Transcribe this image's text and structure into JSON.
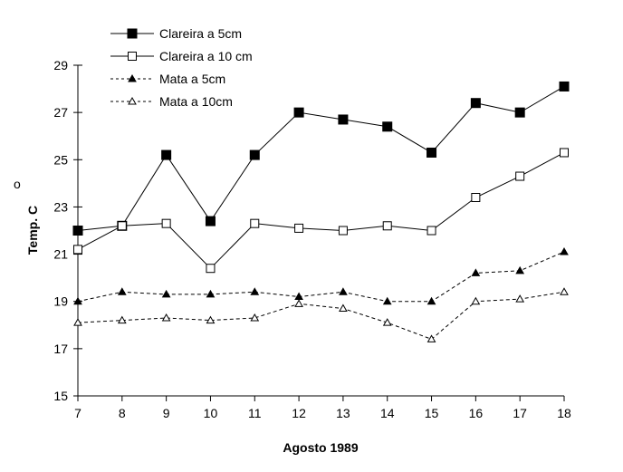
{
  "chart_data": {
    "type": "line",
    "title": "",
    "xlabel": "Agosto 1989",
    "ylabel": "Temp. C",
    "ylabel_degree": "o",
    "x": [
      7,
      8,
      9,
      10,
      11,
      12,
      13,
      14,
      15,
      16,
      17,
      18
    ],
    "xlim": [
      7,
      18
    ],
    "ylim": [
      15,
      29
    ],
    "yticks": [
      15,
      17,
      19,
      21,
      23,
      25,
      27,
      29
    ],
    "grid": false,
    "legend_position": "top-left",
    "series": [
      {
        "name": "Clareira a 5cm",
        "marker": "filled-square",
        "line": "solid",
        "values": [
          22.0,
          22.2,
          25.2,
          22.4,
          25.2,
          27.0,
          26.7,
          26.4,
          25.3,
          27.4,
          27.0,
          28.1
        ]
      },
      {
        "name": "Clareira a 10 cm",
        "marker": "open-square",
        "line": "solid",
        "values": [
          21.2,
          22.2,
          22.3,
          20.4,
          22.3,
          22.1,
          22.0,
          22.2,
          22.0,
          23.4,
          24.3,
          25.3
        ]
      },
      {
        "name": "Mata a 5cm",
        "marker": "filled-triangle",
        "line": "dashed",
        "values": [
          19.0,
          19.4,
          19.3,
          19.3,
          19.4,
          19.2,
          19.4,
          19.0,
          19.0,
          20.2,
          20.3,
          21.1
        ]
      },
      {
        "name": "Mata a 10cm",
        "marker": "open-triangle",
        "line": "dashed",
        "values": [
          18.1,
          18.2,
          18.3,
          18.2,
          18.3,
          18.9,
          18.7,
          18.1,
          17.4,
          19.0,
          19.1,
          19.4
        ]
      }
    ]
  }
}
